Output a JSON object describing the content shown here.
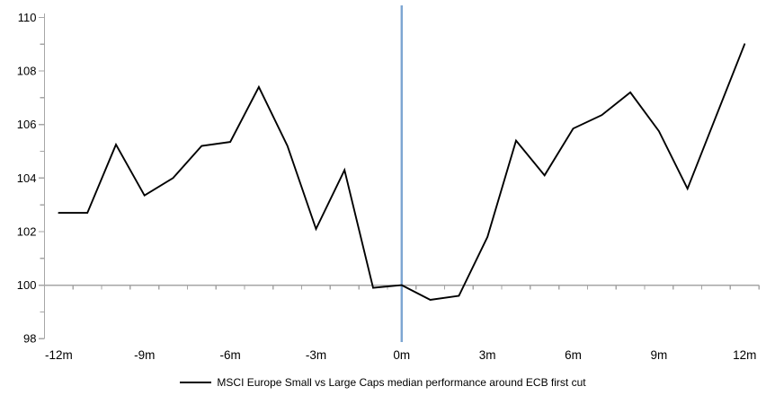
{
  "chart_data": {
    "type": "line",
    "x": [
      -12,
      -11,
      -10,
      -9,
      -8,
      -7,
      -6,
      -5,
      -4,
      -3,
      -2,
      -1,
      0,
      1,
      2,
      3,
      4,
      5,
      6,
      7,
      8,
      9,
      10,
      11,
      12
    ],
    "series": [
      {
        "name": "MSCI Europe Small vs Large Caps median performance around ECB first cut",
        "values": [
          102.7,
          102.7,
          105.25,
          103.35,
          104.0,
          105.2,
          105.35,
          107.4,
          105.2,
          102.1,
          104.3,
          99.9,
          100.0,
          99.45,
          99.6,
          101.8,
          105.4,
          104.1,
          105.85,
          106.35,
          107.2,
          105.75,
          103.6,
          106.3,
          109.0
        ]
      }
    ],
    "x_tick_labels": [
      "-12m",
      "-9m",
      "-6m",
      "-3m",
      "0m",
      "3m",
      "6m",
      "9m",
      "12m"
    ],
    "x_tick_months": [
      -12,
      -9,
      -6,
      -3,
      0,
      3,
      6,
      9,
      12
    ],
    "y_tick_labels": [
      "110",
      "108",
      "106",
      "104",
      "102",
      "100",
      "98"
    ],
    "y_tick_values": [
      110,
      108,
      106,
      104,
      102,
      100,
      98
    ],
    "y_minor_tick_values": [
      109,
      107,
      105,
      103,
      101,
      99
    ],
    "ylim": [
      98,
      110
    ],
    "xlim": [
      -12,
      12
    ],
    "x_axis_cross_value": 100,
    "event_line_month": 0,
    "grid": "off",
    "legend_position": "bottom",
    "colors": {
      "series": "#000000",
      "event_line": "#7EA6D2",
      "axis": "#A6A6A6",
      "text": "#000000"
    }
  },
  "legend": {
    "label": "MSCI Europe Small vs Large Caps median performance around ECB first cut"
  }
}
